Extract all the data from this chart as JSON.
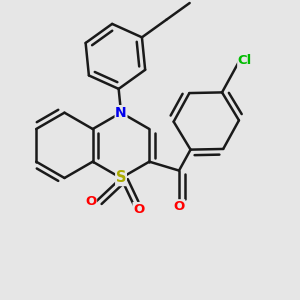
{
  "bg": "#e6e6e6",
  "bond_color": "#1a1a1a",
  "lw": 1.8,
  "atom_colors": {
    "N": "#0000ee",
    "S": "#aaaa00",
    "O": "#ff0000",
    "Cl": "#00bb00"
  },
  "dbo": 0.018,
  "figsize": [
    3.0,
    3.0
  ],
  "dpi": 100
}
